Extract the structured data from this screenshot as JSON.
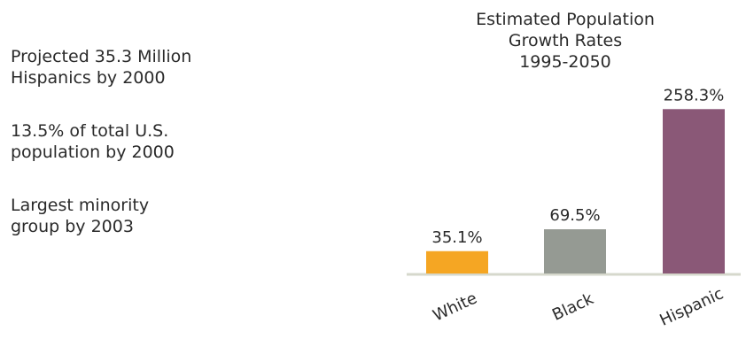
{
  "facts": [
    "Projected 35.3 Million\nHispanics by 2000",
    "13.5% of total U.S.\npopulation by 2000",
    "Largest minority\ngroup by 2003"
  ],
  "chart_data": {
    "type": "bar",
    "title": "Estimated Population\nGrowth Rates\n1995-2050",
    "categories": [
      "White",
      "Black",
      "Hispanic"
    ],
    "values": [
      35.1,
      69.5,
      258.3
    ],
    "value_labels": [
      "35.1%",
      "69.5%",
      "258.3%"
    ],
    "colors": [
      "#f5a623",
      "#959a93",
      "#8a5877"
    ],
    "ylim": [
      0,
      300
    ],
    "grid": false,
    "xlabel": "",
    "ylabel": ""
  }
}
